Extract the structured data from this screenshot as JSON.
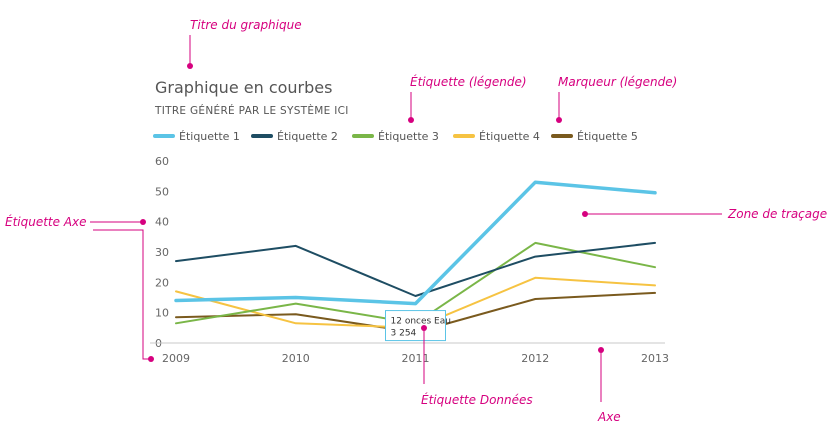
{
  "chart_data": {
    "type": "line",
    "title": "Graphique en courbes",
    "subtitle": "TITRE GÉNÉRÉ PAR LE SYSTÈME ICI",
    "x": [
      "2009",
      "2010",
      "2011",
      "2012",
      "2013"
    ],
    "ylim": [
      0,
      60
    ],
    "yticks": [
      0,
      10,
      20,
      30,
      40,
      50,
      60
    ],
    "grid": false,
    "legend_position": "top",
    "series": [
      {
        "name": "Étiquette 1",
        "color": "#5bc4e6",
        "values": [
          14,
          15,
          13,
          53,
          49.5
        ]
      },
      {
        "name": "Étiquette 2",
        "color": "#1e4d63",
        "values": [
          27,
          32,
          15.5,
          28.5,
          33
        ]
      },
      {
        "name": "Étiquette 3",
        "color": "#7ab648",
        "values": [
          6.5,
          13,
          6.5,
          33,
          25
        ]
      },
      {
        "name": "Étiquette 4",
        "color": "#f6c342",
        "values": [
          17,
          6.5,
          5,
          21.5,
          19
        ]
      },
      {
        "name": "Étiquette 5",
        "color": "#7a5a1e",
        "values": [
          8.5,
          9.5,
          3.5,
          14.5,
          16.5
        ]
      }
    ],
    "tooltip": {
      "series": "Étiquette 1",
      "x": "2011",
      "value": 13,
      "line1": "12 onces Eau",
      "line2": "3 254"
    },
    "annotations": [
      {
        "id": "chart-title-callout",
        "text": "Titre du graphique",
        "color": "#d6007f"
      },
      {
        "id": "legend-label-callout",
        "text": "Étiquette (légende)",
        "color": "#d6007f"
      },
      {
        "id": "legend-marker-callout",
        "text": "Marqueur (légende)",
        "color": "#d6007f"
      },
      {
        "id": "axis-label-callout",
        "text": "Étiquette Axe",
        "color": "#d6007f"
      },
      {
        "id": "plot-area-callout",
        "text": "Zone de traçage",
        "color": "#d6007f"
      },
      {
        "id": "data-label-callout",
        "text": "Étiquette Données",
        "color": "#d6007f"
      },
      {
        "id": "axis-callout",
        "text": "Axe",
        "color": "#d6007f"
      }
    ]
  }
}
